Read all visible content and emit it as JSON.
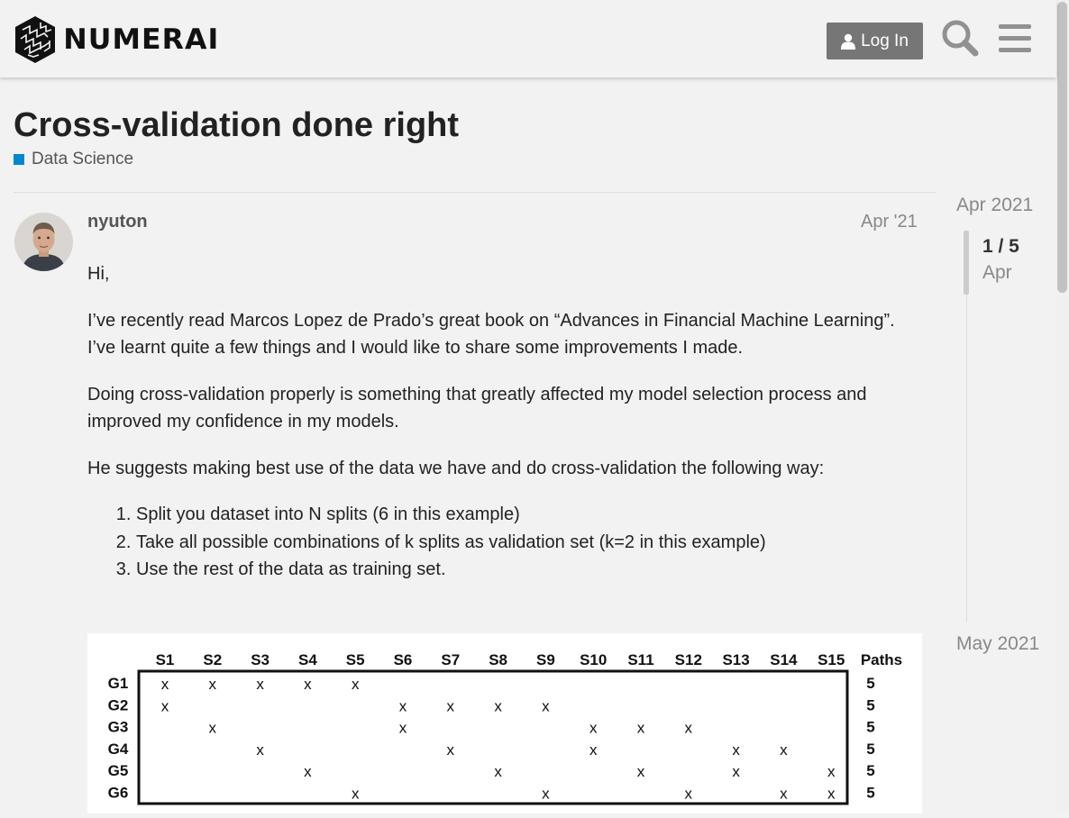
{
  "header": {
    "logo_text": "NUMERAI",
    "login_label": "Log In",
    "icons": {
      "login": "user-icon",
      "search": "search-icon",
      "menu": "hamburger-menu-icon"
    }
  },
  "topic": {
    "title": "Cross-validation done right",
    "category": "Data Science",
    "category_color": "#0088cc"
  },
  "post": {
    "username": "nyuton",
    "date": "Apr '21",
    "paragraphs": [
      "Hi,",
      "I’ve recently read Marcos Lopez de Prado’s great book on “Advances in Financial Machine Learning”.",
      "I’ve learnt quite a few things and I would like to share some improvements I made.",
      "Doing cross-validation properly is something that greatly affected my model selection process and improved my confidence in my models.",
      "He suggests making best use of the data we have and do cross-validation the following way:"
    ],
    "steps": [
      "Split you dataset into N splits (6 in this example)",
      "Take all possible combinations of k splits as validation set (k=2 in this example)",
      "Use the rest of the data as training set."
    ]
  },
  "figure": {
    "columns": [
      "S1",
      "S2",
      "S3",
      "S4",
      "S5",
      "S6",
      "S7",
      "S8",
      "S9",
      "S10",
      "S11",
      "S12",
      "S13",
      "S14",
      "S15",
      "Paths"
    ],
    "rows": [
      {
        "group": "G1",
        "marks": [
          "x",
          "x",
          "x",
          "x",
          "x",
          "",
          "",
          "",
          "",
          "",
          "",
          "",
          "",
          "",
          ""
        ],
        "paths": "5"
      },
      {
        "group": "G2",
        "marks": [
          "x",
          "",
          "",
          "",
          "",
          "x",
          "x",
          "x",
          "x",
          "",
          "",
          "",
          "",
          "",
          ""
        ],
        "paths": "5"
      },
      {
        "group": "G3",
        "marks": [
          "",
          "x",
          "",
          "",
          "",
          "x",
          "",
          "",
          "",
          "x",
          "x",
          "x",
          "",
          "",
          ""
        ],
        "paths": "5"
      },
      {
        "group": "G4",
        "marks": [
          "",
          "",
          "x",
          "",
          "",
          "",
          "x",
          "",
          "",
          "x",
          "",
          "",
          "x",
          "x",
          ""
        ],
        "paths": "5"
      },
      {
        "group": "G5",
        "marks": [
          "",
          "",
          "",
          "x",
          "",
          "",
          "",
          "x",
          "",
          "",
          "x",
          "",
          "x",
          "",
          "x"
        ],
        "paths": "5"
      },
      {
        "group": "G6",
        "marks": [
          "",
          "",
          "",
          "",
          "x",
          "",
          "",
          "",
          "x",
          "",
          "",
          "x",
          "",
          "x",
          "x"
        ],
        "paths": "5"
      }
    ]
  },
  "timeline": {
    "start_label": "Apr 2021",
    "position": "1 / 5",
    "position_date": "Apr",
    "end_label": "May 2021"
  }
}
